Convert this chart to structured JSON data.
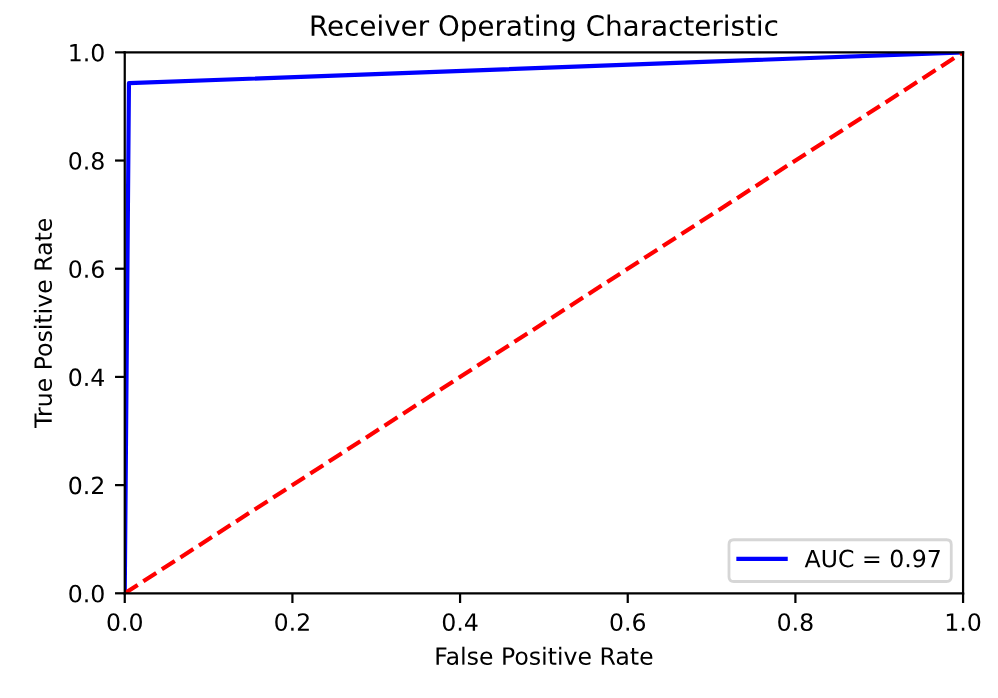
{
  "chart_data": {
    "type": "line",
    "title": "Receiver Operating Characteristic",
    "xlabel": "False Positive Rate",
    "ylabel": "True Positive Rate",
    "series": [
      {
        "name": "AUC = 0.97",
        "color": "#0000ff",
        "x": [
          0,
          0.005,
          1
        ],
        "values": [
          0,
          0.943,
          1
        ],
        "line_style": "solid"
      },
      {
        "color": "#ff0000",
        "x": [
          0,
          1
        ],
        "values": [
          0,
          1
        ],
        "line_style": "dashed"
      }
    ],
    "xlim": [
      0,
      1
    ],
    "ylim": [
      0,
      1
    ],
    "xticks": [
      {
        "value": 0,
        "label": "0.0"
      },
      0.2,
      0.4,
      0.6,
      0.8,
      {
        "value": 1,
        "label": "1.0"
      }
    ],
    "yticks": [
      {
        "value": 0,
        "label": "0.0"
      },
      0.2,
      0.4,
      0.6,
      0.8,
      {
        "value": 1,
        "label": "1.0"
      }
    ],
    "grid": false,
    "legend": "bottom right",
    "marker": "none"
  }
}
